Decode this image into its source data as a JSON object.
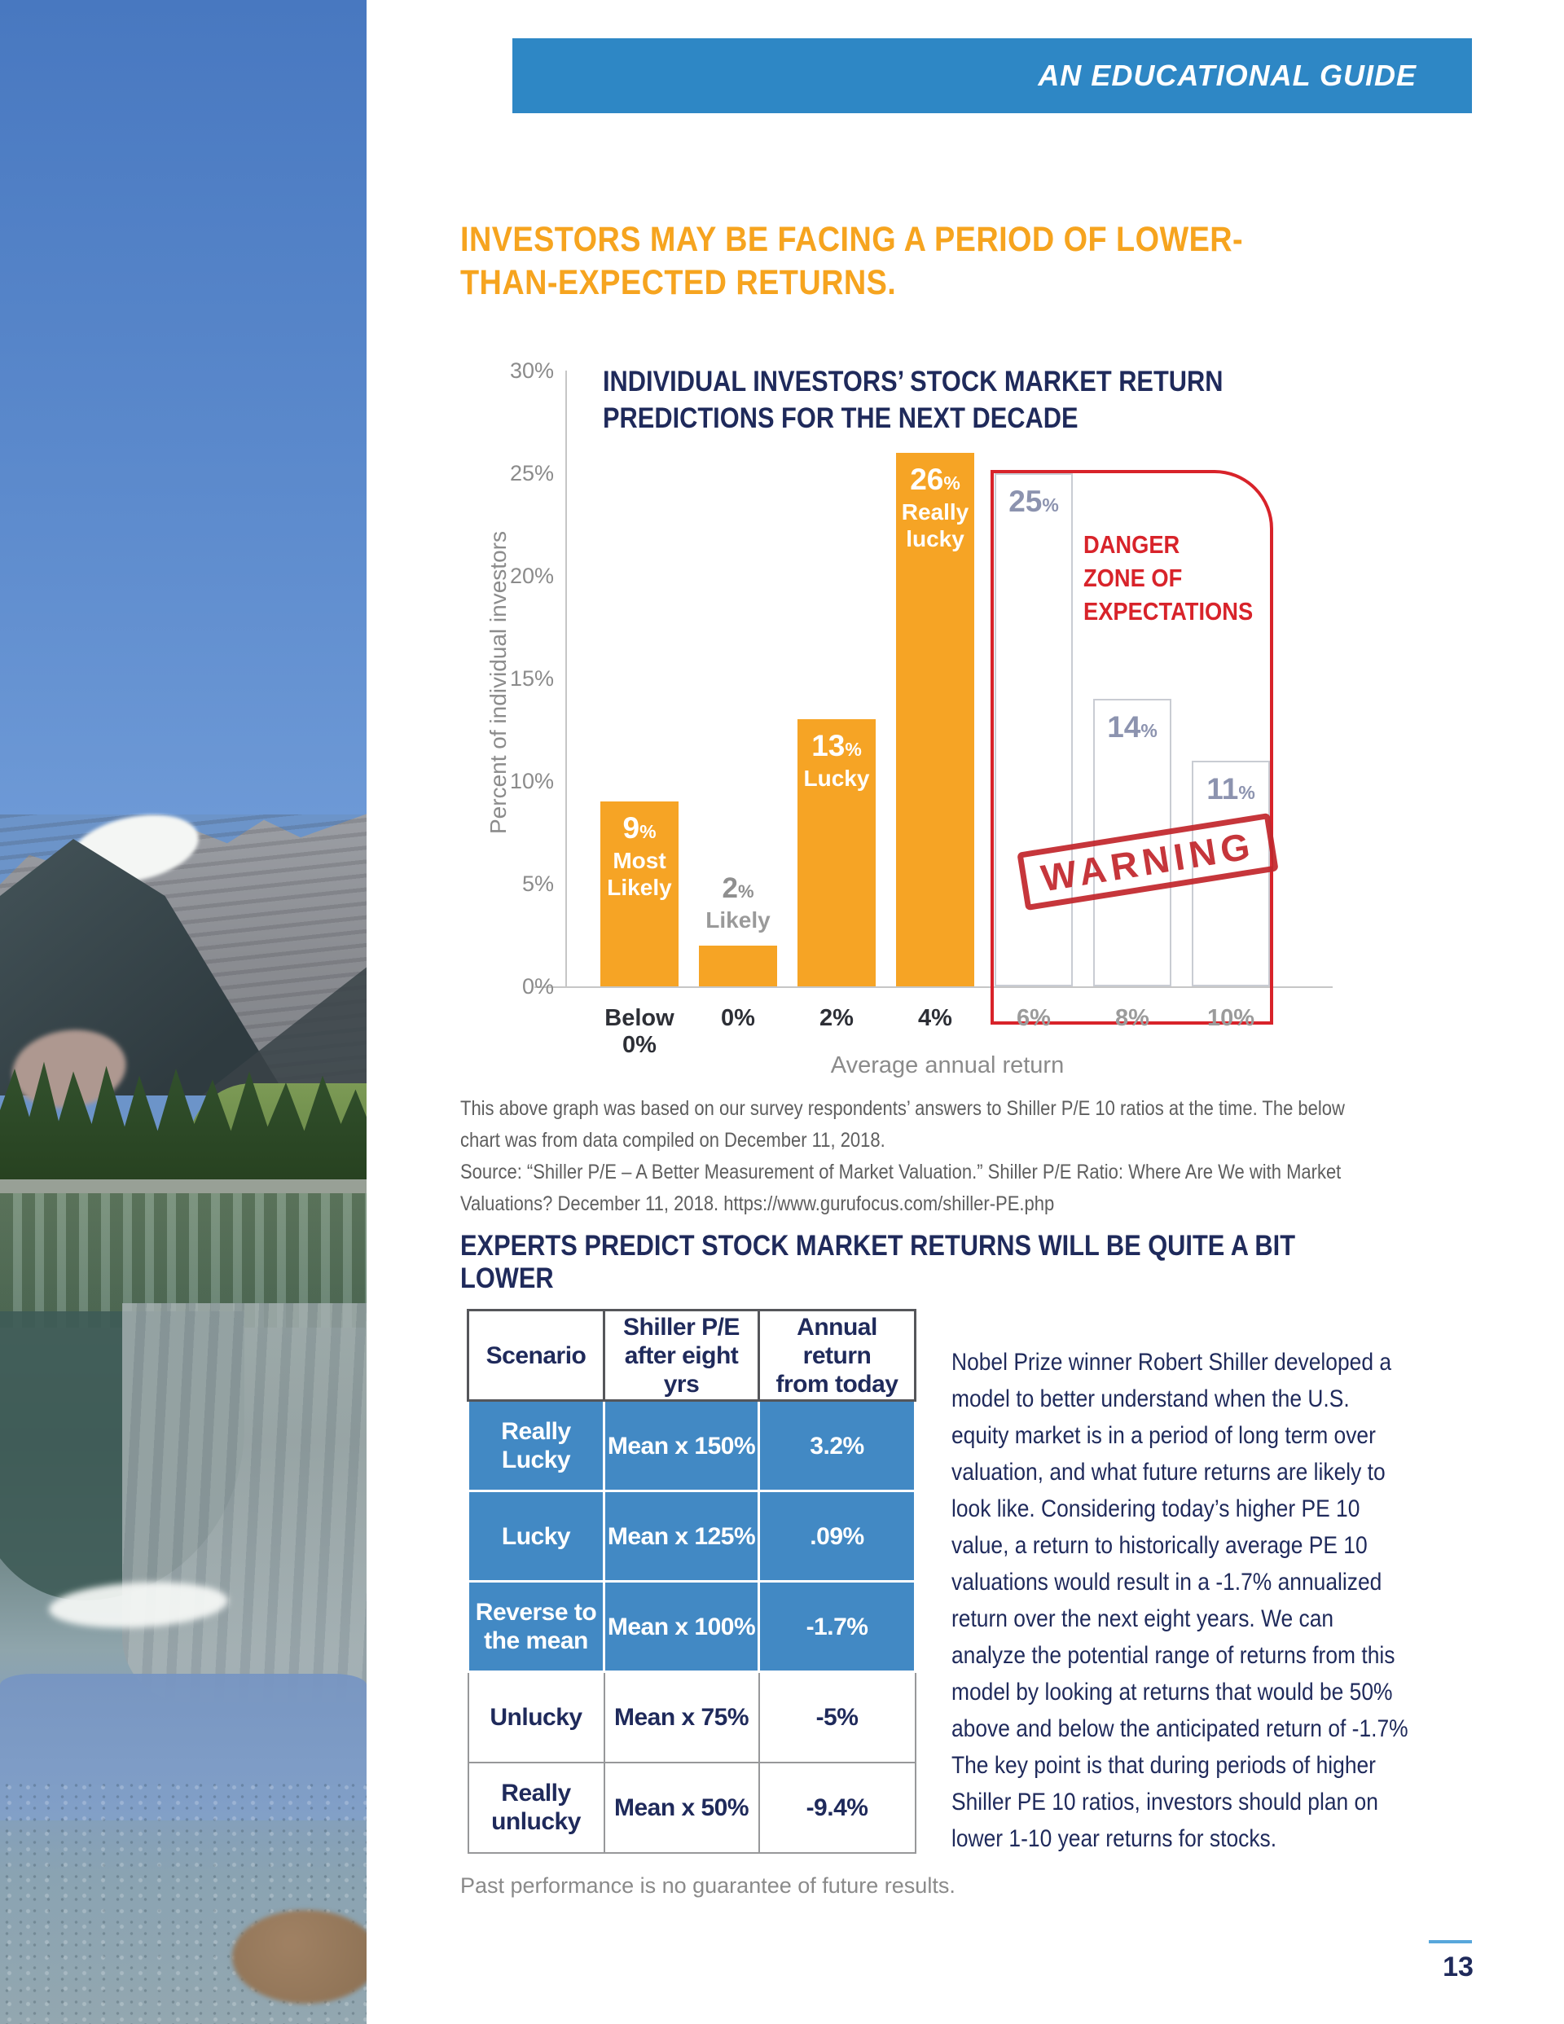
{
  "banner": {
    "label": "AN EDUCATIONAL GUIDE",
    "bg_color": "#2E87C5"
  },
  "headline": {
    "text": "INVESTORS MAY BE FACING A PERIOD OF LOWER-\nTHAN-EXPECTED RETURNS.",
    "color": "#F6A41F"
  },
  "chart_data": {
    "type": "bar",
    "title": "INDIVIDUAL INVESTORS’ STOCK MARKET RETURN\nPREDICTIONS FOR THE NEXT DECADE",
    "ylabel": "Percent of individual investors",
    "xlabel": "Average annual return",
    "ylim": [
      0,
      30
    ],
    "ytick_step": 5,
    "ytick_suffix": "%",
    "categories": [
      "Below 0%",
      "0%",
      "2%",
      "4%",
      "6%",
      "8%",
      "10%"
    ],
    "values": [
      9,
      2,
      13,
      26,
      25,
      14,
      11
    ],
    "bars": [
      {
        "category": "Below\n0%",
        "value": 9,
        "label": "9%",
        "caption": "Most\nLikely",
        "style": "solid",
        "label_position": "inside"
      },
      {
        "category": "0%",
        "value": 2,
        "label": "2%",
        "caption": "Likely",
        "style": "solid",
        "label_position": "above"
      },
      {
        "category": "2%",
        "value": 13,
        "label": "13%",
        "caption": "Lucky",
        "style": "solid",
        "label_position": "inside"
      },
      {
        "category": "4%",
        "value": 26,
        "label": "26%",
        "caption": "Really\nlucky",
        "style": "solid",
        "label_position": "inside"
      },
      {
        "category": "6%",
        "value": 25,
        "label": "25%",
        "caption": "",
        "style": "outline",
        "label_position": "inside"
      },
      {
        "category": "8%",
        "value": 14,
        "label": "14%",
        "caption": "",
        "style": "outline",
        "label_position": "inside"
      },
      {
        "category": "10%",
        "value": 11,
        "label": "11%",
        "caption": "",
        "style": "outline",
        "label_position": "inside"
      }
    ],
    "colors": {
      "bar_solid": "#F6A425",
      "bar_outline_border": "#C9CCD3",
      "label_inside": "#FFFFFF",
      "label_outline": "#8C93AF",
      "label_above": "#8F8F8F",
      "axis_text": "#8B8B8B",
      "x_label_dark": "#2D2F36",
      "x_label_gray": "#9B9B9B",
      "danger_red": "#D8232A"
    },
    "danger_zone": {
      "title": "DANGER\nZONE OF\nEXPECTATIONS",
      "stamp": "WARNING",
      "covers_categories": [
        "6%",
        "8%",
        "10%"
      ]
    },
    "legend": null,
    "grid": false
  },
  "source_note": {
    "line1": "This above graph was based on our survey respondents’ answers to Shiller P/E 10 ratios at the time. The below chart was from data compiled on December 11, 2018.",
    "line2": "Source: “Shiller P/E – A Better Measurement of Market Valuation.” Shiller P/E Ratio: Where Are We with Market Valuations? December 11, 2018. https://www.gurufocus.com/shiller-PE.php"
  },
  "section_heading": "EXPERTS PREDICT STOCK MARKET RETURNS WILL BE QUITE A BIT LOWER",
  "table": {
    "headers": [
      "Scenario",
      "Shiller P/E\nafter eight yrs",
      "Annual return\nfrom today"
    ],
    "rows": [
      {
        "scenario": "Really\nLucky",
        "shiller": "Mean x 150%",
        "annual_return": "3.2%",
        "highlighted": true
      },
      {
        "scenario": "Lucky",
        "shiller": "Mean x 125%",
        "annual_return": ".09%",
        "highlighted": true
      },
      {
        "scenario": "Reverse to\nthe mean",
        "shiller": "Mean x 100%",
        "annual_return": "-1.7%",
        "highlighted": true
      },
      {
        "scenario": "Unlucky",
        "shiller": "Mean x 75%",
        "annual_return": "-5%",
        "highlighted": false
      },
      {
        "scenario": "Really\nunlucky",
        "shiller": "Mean x 50%",
        "annual_return": "-9.4%",
        "highlighted": false
      }
    ],
    "highlight_color": "#4289C4"
  },
  "body_paragraph": "Nobel Prize winner Robert Shiller developed a model to better understand when the U.S. equity market is in a period of long term over valuation, and what future returns are likely to look like. Considering today’s higher PE 10 value, a return to historically average PE 10 valuations would result in a -1.7% annualized return over the next eight years. We can analyze the potential range of returns from this model by looking at returns that would be 50% above and below the anticipated return of -1.7% The key point is that during periods of higher Shiller PE 10 ratios, investors should plan on lower 1-10 year returns for stocks.",
  "footnote": "Past performance is no guarantee of future results.",
  "page_number": "13"
}
